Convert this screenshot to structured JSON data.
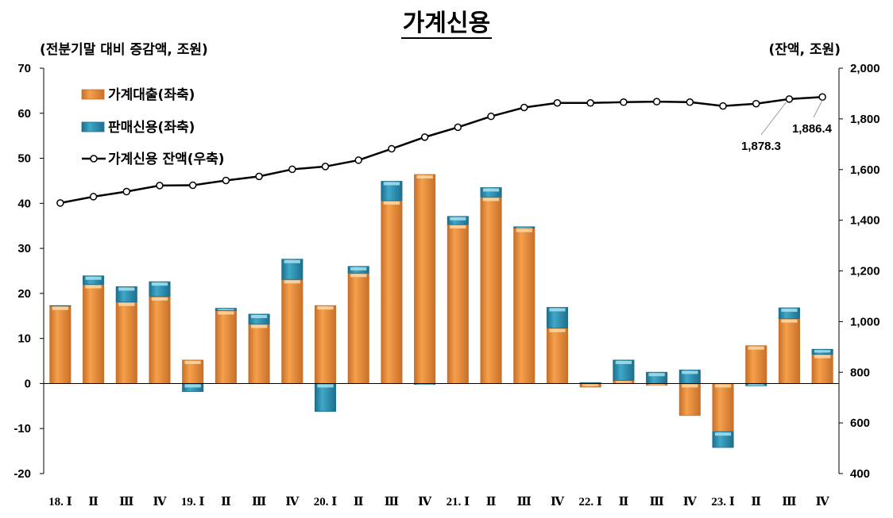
{
  "title": "가계신용",
  "left_unit": "(전분기말 대비 증감액, 조원)",
  "right_unit": "(잔액, 조원)",
  "colors": {
    "loan": "#f5a04c",
    "loan_light": "#fdd9a8",
    "loan_dark": "#c8702a",
    "sales": "#3fa8c8",
    "sales_light": "#a8e0f0",
    "sales_dark": "#1d6f8c",
    "line": "#000000"
  },
  "chart_data": {
    "type": "bar",
    "categories": [
      "18. Ⅰ",
      "Ⅱ",
      "Ⅲ",
      "Ⅳ",
      "19. Ⅰ",
      "Ⅱ",
      "Ⅲ",
      "Ⅳ",
      "20. Ⅰ",
      "Ⅱ",
      "Ⅲ",
      "Ⅳ",
      "21. Ⅰ",
      "Ⅱ",
      "Ⅲ",
      "Ⅳ",
      "22. Ⅰ",
      "Ⅱ",
      "Ⅲ",
      "Ⅳ",
      "23. Ⅰ",
      "Ⅱ",
      "Ⅲ",
      "Ⅳ"
    ],
    "series": [
      {
        "name": "가계대출(좌축)",
        "kind": "bar",
        "axis": "left",
        "values": [
          17.2,
          22.0,
          18.1,
          19.3,
          5.2,
          16.2,
          13.2,
          23.1,
          17.3,
          24.5,
          40.6,
          46.4,
          35.3,
          41.4,
          34.5,
          12.3,
          -0.8,
          0.7,
          -0.4,
          -7.1,
          -10.7,
          8.4,
          14.4,
          6.5
        ]
      },
      {
        "name": "판매신용(좌축)",
        "kind": "bar",
        "axis": "left",
        "values": [
          0.1,
          1.9,
          3.4,
          3.3,
          -1.8,
          0.5,
          2.2,
          4.5,
          -6.2,
          1.5,
          4.3,
          -0.2,
          1.8,
          2.1,
          0.3,
          4.6,
          0.2,
          4.5,
          2.5,
          3.0,
          -3.5,
          -0.5,
          2.4,
          1.1
        ]
      },
      {
        "name": "가계신용 잔액(우축)",
        "kind": "line",
        "axis": "right",
        "values": [
          1468,
          1493,
          1513,
          1537,
          1538,
          1557,
          1573,
          1601,
          1612,
          1637,
          1682,
          1728,
          1767,
          1810,
          1845,
          1863,
          1863,
          1866,
          1868,
          1866,
          1851,
          1860,
          1878.3,
          1886.4
        ]
      }
    ],
    "annotations": [
      {
        "text": "1,878.3",
        "index": 22
      },
      {
        "text": "1,886.4",
        "index": 23
      }
    ],
    "y_left": {
      "min": -20,
      "max": 70,
      "step": 10,
      "ticks": [
        "-20",
        "-10",
        "0",
        "10",
        "20",
        "30",
        "40",
        "50",
        "60",
        "70"
      ]
    },
    "y_right": {
      "min": 400,
      "max": 2000,
      "step": 200,
      "ticks": [
        "400",
        "600",
        "800",
        "1,000",
        "1,200",
        "1,400",
        "1,600",
        "1,800",
        "2,000"
      ]
    },
    "legend": [
      "가계대출(좌축)",
      "판매신용(좌축)",
      "가계신용 잔액(우축)"
    ],
    "legend_position": "top-left",
    "grid": false
  }
}
